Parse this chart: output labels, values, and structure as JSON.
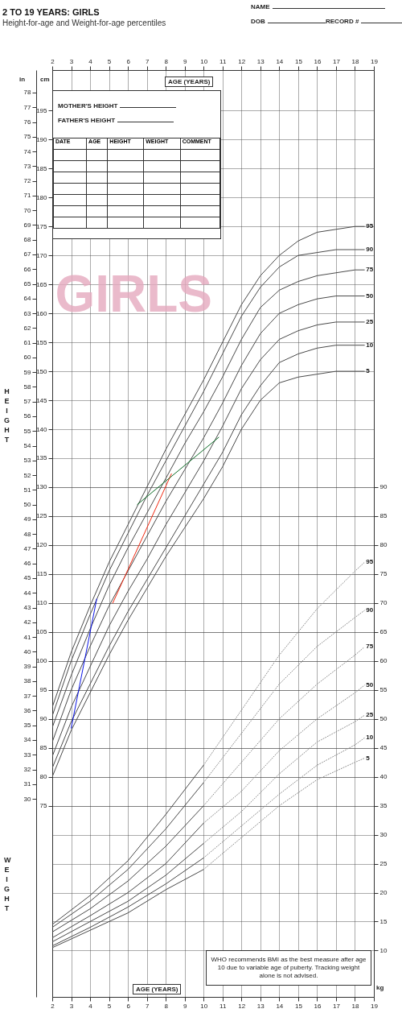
{
  "chart_data": {
    "type": "line",
    "title": "2 TO 19 YEARS: GIRLS",
    "subtitle": "Height-for-age and Weight-for-age percentiles",
    "ylabel": "HEIGHT",
    "annotations": [
      "NAME",
      "DOB",
      "RECORD #",
      "MOTHER'S HEIGHT",
      "FATHER'S HEIGHT",
      "DATE",
      "AGE",
      "HEIGHT",
      "WEIGHT",
      "COMMENT",
      "GIRLS",
      "AGE (YEARS)",
      "AGE (YEARS)",
      "WHO recommends BMI as the best measure after age 10 due to variable age of puberty. Tracking weight alone is not advised.",
      "cm",
      "in",
      "kg",
      "WEIGHT"
    ],
    "xlim": [
      2,
      19
    ],
    "xticks": [
      2,
      3,
      4,
      5,
      6,
      7,
      8,
      9,
      10,
      11,
      12,
      13,
      14,
      15,
      16,
      17,
      18,
      19
    ],
    "x2lim": [
      2,
      19
    ],
    "x2ticks": [
      2,
      3,
      4,
      5,
      6,
      7,
      8,
      9,
      10,
      11,
      12,
      13,
      14,
      15,
      16,
      17,
      18,
      19
    ],
    "ylim": [
      42,
      202
    ],
    "yticks": [
      75,
      80,
      85,
      90,
      95,
      100,
      105,
      110,
      115,
      120,
      125,
      130,
      135,
      140,
      145,
      150,
      155,
      160,
      165,
      170,
      175,
      180,
      185,
      190,
      195
    ],
    "y2lim": [
      2,
      162
    ],
    "y2ticks": [
      10,
      15,
      20,
      25,
      30,
      35,
      40,
      45,
      50,
      55,
      60,
      65,
      70,
      75,
      80,
      85,
      90
    ],
    "y3lim": [
      16.54,
      79.53
    ],
    "y3ticks": [
      30,
      31,
      32,
      33,
      34,
      35,
      36,
      37,
      38,
      39,
      40,
      41,
      42,
      43,
      44,
      45,
      46,
      47,
      48,
      49,
      50,
      51,
      52,
      53,
      54,
      55,
      56,
      57,
      58,
      59,
      60,
      61,
      62,
      63,
      64,
      65,
      66,
      67,
      68,
      69,
      70,
      71,
      72,
      73,
      74,
      75,
      76,
      77,
      78
    ],
    "grid": true,
    "series": [
      {
        "name": "95",
        "color": "#4a4a4a",
        "line_style": "solid",
        "x": [
          2,
          3,
          4,
          5,
          6,
          7,
          8,
          9,
          10,
          11,
          12,
          13,
          14,
          15,
          16,
          17,
          18,
          18.5
        ],
        "values": [
          92,
          101.5,
          109.5,
          117,
          123.5,
          130,
          136.5,
          142.5,
          148.5,
          155,
          161.5,
          166.5,
          170,
          172.5,
          174,
          174.5,
          175,
          175
        ]
      },
      {
        "name": "90",
        "color": "#4a4a4a",
        "line_style": "solid",
        "x": [
          2,
          3,
          4,
          5,
          6,
          7,
          8,
          9,
          10,
          11,
          12,
          13,
          14,
          15,
          16,
          17,
          18,
          18.5
        ],
        "values": [
          90.5,
          100,
          108,
          115.5,
          122,
          128.5,
          134.5,
          140.5,
          146.5,
          153,
          159.5,
          164.5,
          168,
          170,
          170.5,
          171,
          171,
          171
        ]
      },
      {
        "name": "75",
        "color": "#4a4a4a",
        "line_style": "solid",
        "x": [
          2,
          3,
          4,
          5,
          6,
          7,
          8,
          9,
          10,
          11,
          12,
          13,
          14,
          15,
          16,
          17,
          18,
          18.5
        ],
        "values": [
          88.5,
          97.5,
          105.5,
          113,
          119.5,
          125.5,
          131.5,
          137.5,
          143,
          149,
          155.5,
          161,
          164,
          165.5,
          166.5,
          167,
          167.5,
          167.5
        ]
      },
      {
        "name": "50",
        "color": "#4a4a4a",
        "line_style": "solid",
        "x": [
          2,
          3,
          4,
          5,
          6,
          7,
          8,
          9,
          10,
          11,
          12,
          13,
          14,
          15,
          16,
          17,
          18,
          18.5
        ],
        "values": [
          86,
          95,
          102.5,
          109.5,
          115.5,
          121.5,
          127.5,
          133,
          138.5,
          144.5,
          151,
          156.5,
          160,
          161.5,
          162.5,
          163,
          163,
          163
        ]
      },
      {
        "name": "25",
        "color": "#4a4a4a",
        "line_style": "solid",
        "x": [
          2,
          3,
          4,
          5,
          6,
          7,
          8,
          9,
          10,
          11,
          12,
          13,
          14,
          15,
          16,
          17,
          18,
          18.5
        ],
        "values": [
          83.5,
          92,
          99,
          106,
          112,
          117.5,
          123.5,
          129,
          134.5,
          140.5,
          147,
          152,
          155.5,
          157,
          158,
          158.5,
          158.5,
          158.5
        ]
      },
      {
        "name": "10",
        "color": "#4a4a4a",
        "line_style": "solid",
        "x": [
          2,
          3,
          4,
          5,
          6,
          7,
          8,
          9,
          10,
          11,
          12,
          13,
          14,
          15,
          16,
          17,
          18,
          18.5
        ],
        "values": [
          81.5,
          89.5,
          96,
          102.5,
          108.5,
          114,
          119.5,
          125,
          130.5,
          136,
          142.5,
          147.5,
          151.5,
          153,
          154,
          154.5,
          154.5,
          154.5
        ]
      },
      {
        "name": "5",
        "color": "#4a4a4a",
        "line_style": "solid",
        "x": [
          2,
          3,
          4,
          5,
          6,
          7,
          8,
          9,
          10,
          11,
          12,
          13,
          14,
          15,
          16,
          17,
          18,
          18.5
        ],
        "values": [
          80,
          88,
          94.5,
          101,
          107,
          112.5,
          118,
          123,
          128,
          133.5,
          140,
          145,
          148,
          149,
          149.5,
          150,
          150,
          150
        ]
      },
      {
        "color": "#4a4a4a",
        "line_style": "solid",
        "axis": "y2",
        "x": [
          2,
          4,
          6,
          8,
          10
        ],
        "values": [
          14.5,
          19.5,
          25.5,
          33.5,
          42
        ]
      },
      {
        "color": "#4a4a4a",
        "line_style": "solid",
        "axis": "y2",
        "x": [
          2,
          4,
          6,
          8,
          10
        ],
        "values": [
          14,
          18.5,
          24,
          31,
          39
        ]
      },
      {
        "color": "#4a4a4a",
        "line_style": "solid",
        "axis": "y2",
        "x": [
          2,
          4,
          6,
          8,
          10
        ],
        "values": [
          13.2,
          17.2,
          22,
          28,
          35
        ]
      },
      {
        "color": "#4a4a4a",
        "line_style": "solid",
        "axis": "y2",
        "x": [
          2,
          4,
          6,
          8,
          10
        ],
        "values": [
          12.2,
          16,
          20,
          25,
          32
        ]
      },
      {
        "color": "#4a4a4a",
        "line_style": "solid",
        "axis": "y2",
        "x": [
          2,
          4,
          6,
          8,
          10
        ],
        "values": [
          11.5,
          15,
          18.5,
          23,
          28.5
        ]
      },
      {
        "color": "#4a4a4a",
        "line_style": "solid",
        "axis": "y2",
        "x": [
          2,
          4,
          6,
          8,
          10
        ],
        "values": [
          10.8,
          14,
          17.5,
          21.5,
          26
        ]
      },
      {
        "color": "#4a4a4a",
        "line_style": "solid",
        "axis": "y2",
        "x": [
          2,
          4,
          6,
          8,
          10
        ],
        "values": [
          10.5,
          13.5,
          16.5,
          20.5,
          24
        ]
      },
      {
        "name": "95",
        "color": "#8a8a8a",
        "line_style": "dotted",
        "axis": "y2",
        "x": [
          10,
          12,
          14,
          16,
          18,
          18.5
        ],
        "values": [
          42,
          51.5,
          61,
          69,
          75.5,
          77
        ]
      },
      {
        "name": "90",
        "color": "#8a8a8a",
        "line_style": "dotted",
        "axis": "y2",
        "x": [
          10,
          12,
          14,
          16,
          18,
          18.5
        ],
        "values": [
          39,
          47.5,
          56,
          62.5,
          67.5,
          68.7
        ]
      },
      {
        "name": "75",
        "color": "#8a8a8a",
        "line_style": "dotted",
        "axis": "y2",
        "x": [
          10,
          12,
          14,
          16,
          18,
          18.5
        ],
        "values": [
          35,
          42.5,
          50,
          56,
          61,
          62.4
        ]
      },
      {
        "name": "50",
        "color": "#8a8a8a",
        "line_style": "dotted",
        "axis": "y2",
        "x": [
          10,
          12,
          14,
          16,
          18,
          18.5
        ],
        "values": [
          32,
          37.5,
          44.5,
          50,
          54.5,
          55.8
        ]
      },
      {
        "name": "25",
        "color": "#8a8a8a",
        "line_style": "dotted",
        "axis": "y2",
        "x": [
          10,
          12,
          14,
          16,
          18,
          18.5
        ],
        "values": [
          28.5,
          34,
          40.5,
          46,
          49.5,
          50.6
        ]
      },
      {
        "name": "10",
        "color": "#8a8a8a",
        "line_style": "dotted",
        "axis": "y2",
        "x": [
          10,
          12,
          14,
          16,
          18,
          18.5
        ],
        "values": [
          26,
          31.5,
          37,
          42,
          45.5,
          46.7
        ]
      },
      {
        "name": "5",
        "color": "#8a8a8a",
        "line_style": "dotted",
        "axis": "y2",
        "x": [
          10,
          12,
          14,
          16,
          18,
          18.5
        ],
        "values": [
          24,
          29.5,
          35,
          39.5,
          42.5,
          43.2
        ]
      },
      {
        "color": "#0a14e6",
        "line_style": "solid",
        "x": [
          3.0,
          4.35
        ],
        "values": [
          88.4,
          110.7
        ]
      },
      {
        "color": "#f02810",
        "line_style": "solid",
        "x": [
          5.2,
          8.3
        ],
        "values": [
          110,
          132.3
        ]
      },
      {
        "color": "#0c6b26",
        "line_style": "solid",
        "x": [
          6.5,
          10.8
        ],
        "values": [
          127,
          138.6
        ]
      }
    ]
  }
}
